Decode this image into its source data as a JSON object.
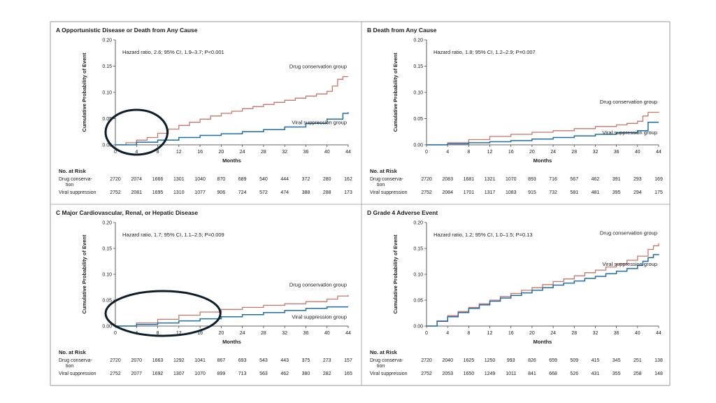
{
  "colors": {
    "drug_conservation": "#c8766a",
    "viral_suppression": "#1f6fa6",
    "axis": "#333333",
    "frame": "#9a9a9a",
    "annotation_circle": "#0d1e2b"
  },
  "risk_table": {
    "heading": "No. at Risk",
    "drug_label_line1": "Drug conserva-",
    "drug_label_line2": "tion",
    "viral_label": "Viral suppression"
  },
  "chart_data": [
    {
      "id": "A",
      "type": "line",
      "title": "A  Opportunistic Disease or Death from Any Cause",
      "annotation": "Hazard ratio, 2.6; 95% CI, 1.9–3.7; P<0.001",
      "xlabel": "Months",
      "ylabel": "Cumulative Probability of Event",
      "xlim": [
        0,
        44
      ],
      "ylim": [
        0,
        0.2
      ],
      "xticks": [
        "0",
        "4",
        "8",
        "12",
        "16",
        "20",
        "24",
        "28",
        "32",
        "36",
        "40",
        "44"
      ],
      "yticks": [
        "0.00",
        "0.05",
        "0.10",
        "0.15",
        "0.20"
      ],
      "series": [
        {
          "name": "Drug conservation group",
          "label_pos": "top-right",
          "x": [
            0,
            2,
            4,
            6,
            8,
            10,
            12,
            14,
            16,
            18,
            20,
            22,
            24,
            26,
            28,
            30,
            32,
            34,
            36,
            38,
            40,
            41,
            42,
            43,
            44
          ],
          "y": [
            0,
            0.004,
            0.009,
            0.014,
            0.022,
            0.03,
            0.037,
            0.043,
            0.049,
            0.055,
            0.06,
            0.064,
            0.069,
            0.073,
            0.077,
            0.081,
            0.085,
            0.089,
            0.093,
            0.097,
            0.102,
            0.112,
            0.125,
            0.13,
            0.13
          ]
        },
        {
          "name": "Viral suppression group",
          "label_pos": "bottom-right",
          "x": [
            0,
            4,
            8,
            12,
            16,
            20,
            24,
            28,
            32,
            36,
            40,
            43,
            44
          ],
          "y": [
            0,
            0.005,
            0.009,
            0.014,
            0.018,
            0.021,
            0.025,
            0.029,
            0.034,
            0.041,
            0.049,
            0.06,
            0.062
          ]
        }
      ],
      "risk": {
        "months": [
          0,
          4,
          8,
          12,
          16,
          20,
          24,
          28,
          32,
          36,
          40,
          44
        ],
        "drug": [
          "2720",
          "2074",
          "1666",
          "1301",
          "1040",
          "870",
          "689",
          "540",
          "444",
          "372",
          "280",
          "162"
        ],
        "viral": [
          "2752",
          "2081",
          "1695",
          "1310",
          "1077",
          "906",
          "724",
          "572",
          "474",
          "388",
          "288",
          "173"
        ]
      },
      "highlight_months": [
        0,
        8
      ]
    },
    {
      "id": "B",
      "type": "line",
      "title": "B  Death from Any Cause",
      "annotation": "Hazard ratio, 1.8; 95% CI, 1.2–2.9; P=0.007",
      "xlabel": "Months",
      "ylabel": "Cumulative Probability of Event",
      "xlim": [
        0,
        44
      ],
      "ylim": [
        0,
        0.2
      ],
      "xticks": [
        "0",
        "4",
        "8",
        "12",
        "16",
        "20",
        "24",
        "28",
        "32",
        "36",
        "40",
        "44"
      ],
      "yticks": [
        "0.00",
        "0.05",
        "0.10",
        "0.15",
        "0.20"
      ],
      "series": [
        {
          "name": "Drug conservation group",
          "label_pos": "top-right",
          "x": [
            0,
            4,
            8,
            12,
            16,
            20,
            24,
            28,
            32,
            36,
            38,
            40,
            41,
            42,
            44
          ],
          "y": [
            0,
            0.004,
            0.01,
            0.016,
            0.02,
            0.024,
            0.027,
            0.031,
            0.035,
            0.038,
            0.041,
            0.045,
            0.055,
            0.062,
            0.063
          ]
        },
        {
          "name": "Viral suppression group",
          "label_pos": "bottom-right",
          "x": [
            0,
            4,
            8,
            12,
            16,
            20,
            24,
            28,
            32,
            36,
            40,
            42,
            44
          ],
          "y": [
            0,
            0.002,
            0.004,
            0.006,
            0.008,
            0.011,
            0.014,
            0.017,
            0.02,
            0.023,
            0.027,
            0.043,
            0.043
          ]
        }
      ],
      "risk": {
        "months": [
          0,
          4,
          8,
          12,
          16,
          20,
          24,
          28,
          32,
          36,
          40,
          44
        ],
        "drug": [
          "2720",
          "2083",
          "1681",
          "1321",
          "1070",
          "893",
          "716",
          "567",
          "462",
          "391",
          "293",
          "169"
        ],
        "viral": [
          "2752",
          "2084",
          "1701",
          "1317",
          "1083",
          "915",
          "732",
          "581",
          "481",
          "395",
          "294",
          "175"
        ]
      }
    },
    {
      "id": "C",
      "type": "line",
      "title": "C  Major Cardiovascular, Renal, or Hepatic Disease",
      "annotation": "Hazard ratio, 1.7; 95% CI, 1.1–2.5; P=0.009",
      "xlabel": "Months",
      "ylabel": "Cumulative Probability of Event",
      "xlim": [
        0,
        44
      ],
      "ylim": [
        0,
        0.2
      ],
      "xticks": [
        "0",
        "4",
        "8",
        "12",
        "16",
        "20",
        "24",
        "28",
        "32",
        "36",
        "40",
        "44"
      ],
      "yticks": [
        "0.00",
        "0.05",
        "0.10",
        "0.15",
        "0.20"
      ],
      "series": [
        {
          "name": "Drug conservation group",
          "label_pos": "top-right",
          "x": [
            0,
            4,
            8,
            12,
            16,
            20,
            24,
            28,
            32,
            36,
            40,
            42,
            44
          ],
          "y": [
            0,
            0.006,
            0.013,
            0.021,
            0.027,
            0.032,
            0.036,
            0.04,
            0.043,
            0.047,
            0.052,
            0.058,
            0.06
          ]
        },
        {
          "name": "Viral suppression group",
          "label_pos": "bottom-right",
          "x": [
            0,
            4,
            8,
            12,
            16,
            20,
            24,
            28,
            32,
            36,
            40,
            44
          ],
          "y": [
            0,
            0.003,
            0.006,
            0.01,
            0.014,
            0.018,
            0.022,
            0.026,
            0.03,
            0.034,
            0.037,
            0.037
          ]
        }
      ],
      "risk": {
        "months": [
          0,
          4,
          8,
          12,
          16,
          20,
          24,
          28,
          32,
          36,
          40,
          44
        ],
        "drug": [
          "2720",
          "2070",
          "1663",
          "1292",
          "1041",
          "867",
          "693",
          "543",
          "443",
          "375",
          "273",
          "157"
        ],
        "viral": [
          "2752",
          "2077",
          "1692",
          "1307",
          "1070",
          "899",
          "713",
          "563",
          "462",
          "380",
          "282",
          "165"
        ]
      },
      "highlight_months": [
        0,
        18
      ]
    },
    {
      "id": "D",
      "type": "line",
      "title": "D  Grade 4 Adverse Event",
      "annotation": "Hazard ratio, 1.2; 95% CI, 1.0–1.5; P=0.13",
      "xlabel": "Months",
      "ylabel": "Cumulative Probability of Event",
      "xlim": [
        0,
        44
      ],
      "ylim": [
        0,
        0.2
      ],
      "xticks": [
        "0",
        "4",
        "8",
        "12",
        "16",
        "20",
        "24",
        "28",
        "32",
        "36",
        "40",
        "44"
      ],
      "yticks": [
        "0.00",
        "0.05",
        "0.10",
        "0.15",
        "0.20"
      ],
      "series": [
        {
          "name": "Drug conservation group",
          "label_pos": "top-right",
          "x": [
            0,
            2,
            4,
            6,
            8,
            10,
            12,
            14,
            16,
            18,
            20,
            22,
            24,
            26,
            28,
            30,
            32,
            34,
            36,
            38,
            40,
            42,
            43,
            44
          ],
          "y": [
            0,
            0.01,
            0.02,
            0.028,
            0.036,
            0.043,
            0.05,
            0.057,
            0.063,
            0.069,
            0.074,
            0.08,
            0.086,
            0.091,
            0.097,
            0.103,
            0.108,
            0.114,
            0.12,
            0.127,
            0.135,
            0.148,
            0.155,
            0.16
          ]
        },
        {
          "name": "Viral suppression group",
          "label_pos": "bottom-right",
          "x": [
            0,
            2,
            4,
            6,
            8,
            10,
            12,
            14,
            16,
            18,
            20,
            22,
            24,
            26,
            28,
            30,
            32,
            34,
            36,
            38,
            40,
            41,
            42,
            43,
            44
          ],
          "y": [
            0,
            0.009,
            0.018,
            0.026,
            0.034,
            0.041,
            0.048,
            0.054,
            0.059,
            0.064,
            0.069,
            0.074,
            0.079,
            0.083,
            0.087,
            0.092,
            0.096,
            0.101,
            0.106,
            0.111,
            0.117,
            0.125,
            0.132,
            0.138,
            0.139
          ]
        }
      ],
      "risk": {
        "months": [
          0,
          4,
          8,
          12,
          16,
          20,
          24,
          28,
          32,
          36,
          40,
          44
        ],
        "drug": [
          "2720",
          "2040",
          "1625",
          "1250",
          "993",
          "826",
          "659",
          "509",
          "415",
          "345",
          "251",
          "138"
        ],
        "viral": [
          "2752",
          "2053",
          "1650",
          "1249",
          "1011",
          "841",
          "668",
          "526",
          "431",
          "355",
          "258",
          "148"
        ]
      }
    }
  ]
}
